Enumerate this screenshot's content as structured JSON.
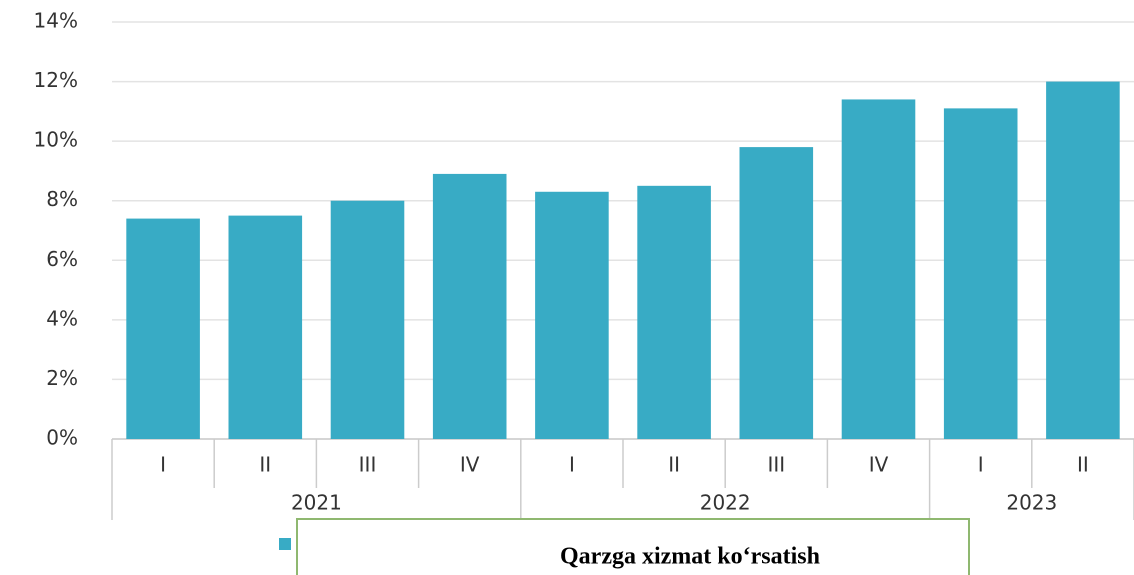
{
  "chart_data": {
    "type": "bar",
    "groups": [
      {
        "name": "2021",
        "categories": [
          "I",
          "II",
          "III",
          "IV"
        ]
      },
      {
        "name": "2022",
        "categories": [
          "I",
          "II",
          "III",
          "IV"
        ]
      },
      {
        "name": "2023",
        "categories": [
          "I",
          "II"
        ]
      }
    ],
    "values": [
      7.4,
      7.5,
      8.0,
      8.9,
      8.3,
      8.5,
      9.8,
      11.4,
      11.1,
      12.0
    ],
    "color": "#38abc5",
    "ylim": [
      0,
      14
    ],
    "yticks": [
      {
        "value": 0,
        "label": "0%"
      },
      {
        "value": 2,
        "label": "2%"
      },
      {
        "value": 4,
        "label": "4%"
      },
      {
        "value": 6,
        "label": "6%"
      },
      {
        "value": 8,
        "label": "8%"
      },
      {
        "value": 10,
        "label": "10%"
      },
      {
        "value": 12,
        "label": "12%"
      },
      {
        "value": 14,
        "label": "14%"
      }
    ],
    "grid": true,
    "overlay_text": "Qarzga xizmat ko‘rsatish"
  }
}
